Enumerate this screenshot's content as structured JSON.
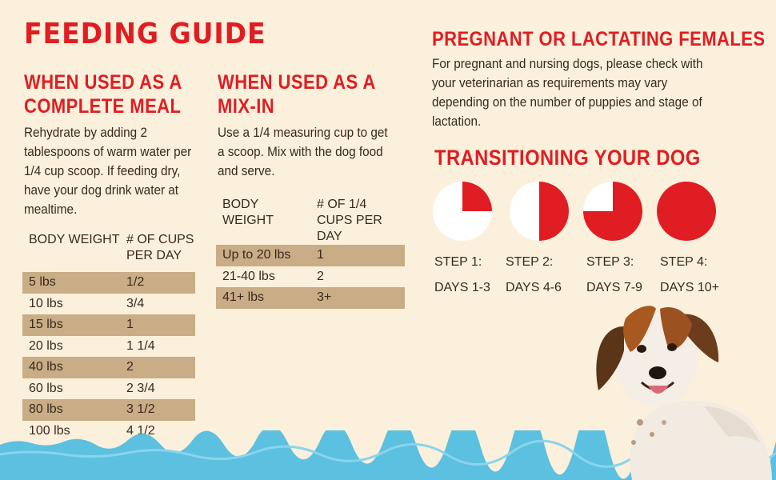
{
  "title": "FEEDING GUIDE",
  "complete_meal": {
    "heading": "WHEN USED AS A COMPLETE MEAL",
    "heading_line1": "WHEN USED AS A",
    "heading_line2": "COMPLETE MEAL",
    "text": "Rehydrate by adding 2 tablespoons of warm water per 1/4 cup scoop. If feeding dry, have your dog drink water at mealtime.",
    "table": {
      "col1_header": "BODY WEIGHT",
      "col2_header": "# OF CUPS PER DAY",
      "rows": [
        {
          "weight": "5 lbs",
          "cups": "1/2"
        },
        {
          "weight": "10 lbs",
          "cups": "3/4"
        },
        {
          "weight": "15 lbs",
          "cups": "1"
        },
        {
          "weight": "20 lbs",
          "cups": "1 1/4"
        },
        {
          "weight": "40 lbs",
          "cups": "2"
        },
        {
          "weight": "60 lbs",
          "cups": "2 3/4"
        },
        {
          "weight": "80 lbs",
          "cups": "3 1/2"
        },
        {
          "weight": "100 lbs",
          "cups": "4 1/2"
        }
      ]
    }
  },
  "mix_in": {
    "heading_line1": "WHEN USED AS A",
    "heading_line2": "MIX-IN",
    "text": "Use a 1/4 measuring cup to get a scoop. Mix with the dog food and serve.",
    "table": {
      "col1_header": "BODY WEIGHT",
      "col2_header": "# OF 1/4 CUPS PER DAY",
      "rows": [
        {
          "weight": "Up to 20 lbs",
          "cups": "1"
        },
        {
          "weight": "21-40 lbs",
          "cups": "2"
        },
        {
          "weight": "41+ lbs",
          "cups": "3+"
        }
      ]
    }
  },
  "pregnant": {
    "heading": "PREGNANT OR LACTATING FEMALES",
    "text": "For pregnant and nursing dogs, please check with your veterinarian as requirements may vary depending on the number of puppies and stage of lactation."
  },
  "transition": {
    "heading": "TRANSITIONING YOUR DOG",
    "steps": [
      {
        "step": "STEP 1:",
        "days": "DAYS 1-3",
        "fraction": 0.25
      },
      {
        "step": "STEP 2:",
        "days": "DAYS 4-6",
        "fraction": 0.5
      },
      {
        "step": "STEP 3:",
        "days": "DAYS 7-9",
        "fraction": 0.75
      },
      {
        "step": "STEP 4:",
        "days": "DAYS 10+",
        "fraction": 1.0
      }
    ]
  },
  "colors": {
    "accent_red": "#e01d22",
    "background": "#fbf0dc",
    "row_shade": "#c8ad86",
    "water": "#5cc0e0"
  }
}
